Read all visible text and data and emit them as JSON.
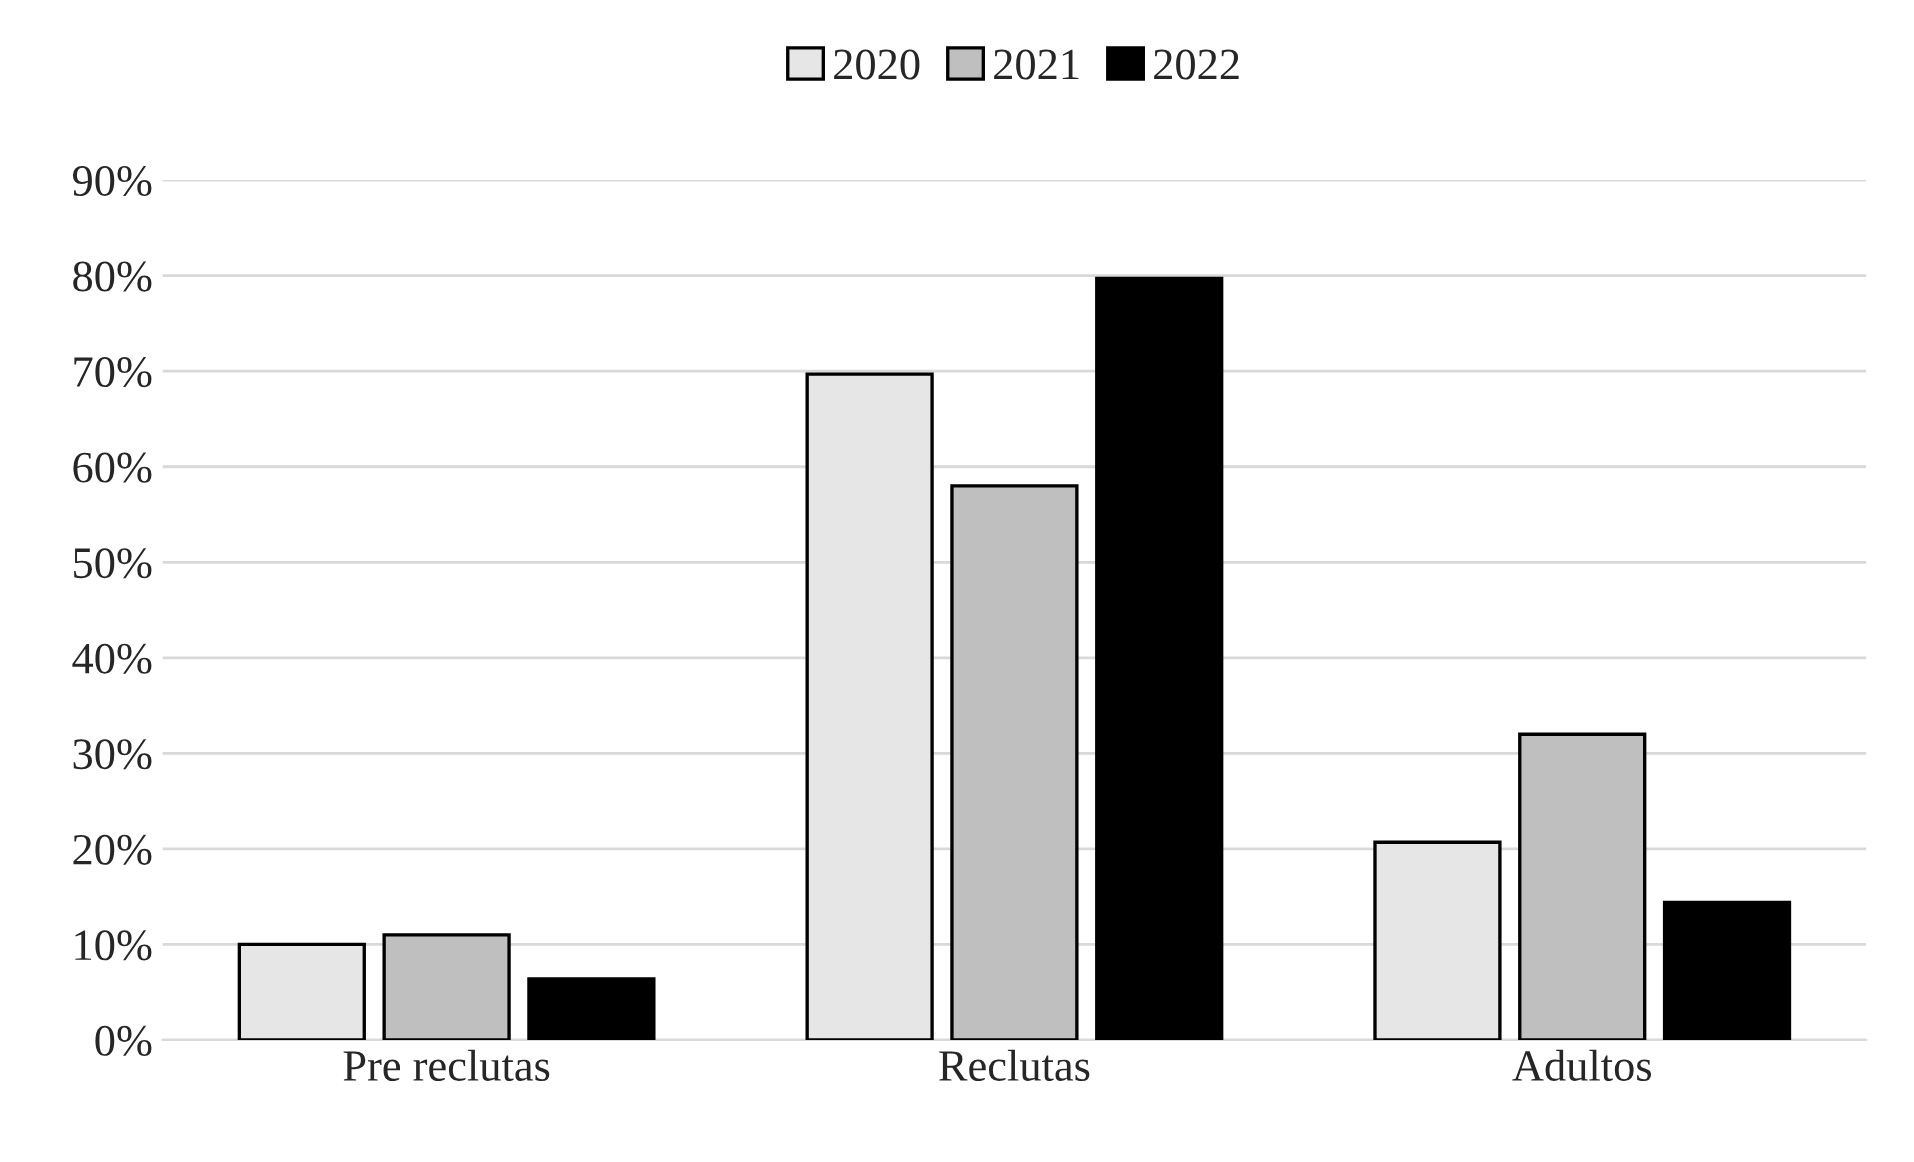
{
  "chart_data": {
    "type": "bar",
    "categories": [
      "Pre reclutas",
      "Reclutas",
      "Adultos"
    ],
    "series": [
      {
        "name": "2020",
        "color": "#e6e6e6",
        "values": [
          10,
          69.7,
          20.7
        ]
      },
      {
        "name": "2021",
        "color": "#bfbfbf",
        "values": [
          11,
          58,
          32
        ]
      },
      {
        "name": "2022",
        "color": "#000000",
        "values": [
          6.4,
          79.7,
          14.4
        ]
      }
    ],
    "ylim": [
      0,
      90
    ],
    "yticks": [
      {
        "value": 0,
        "label": "0%"
      },
      {
        "value": 10,
        "label": "10%"
      },
      {
        "value": 20,
        "label": "20%"
      },
      {
        "value": 30,
        "label": "30%"
      },
      {
        "value": 40,
        "label": "40%"
      },
      {
        "value": 50,
        "label": "50%"
      },
      {
        "value": 60,
        "label": "60%"
      },
      {
        "value": 70,
        "label": "70%"
      },
      {
        "value": 80,
        "label": "80%"
      },
      {
        "value": 90,
        "label": "90%"
      }
    ],
    "grid": "y",
    "legend": "top"
  }
}
